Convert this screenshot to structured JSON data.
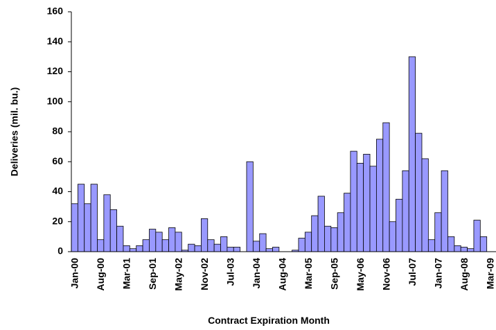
{
  "chart_data": {
    "type": "bar",
    "x_label": "Contract Expiration Month",
    "y_label": "Deliveries (mil. bu.)",
    "categories": [
      "Jan-00",
      null,
      null,
      null,
      "Aug-00",
      null,
      null,
      null,
      "Mar-01",
      null,
      null,
      null,
      "Sep-01",
      null,
      null,
      null,
      "May-02",
      null,
      null,
      null,
      "Nov-02",
      null,
      null,
      null,
      "Jul-03",
      null,
      null,
      null,
      "Jan-04",
      null,
      null,
      null,
      "Aug-04",
      null,
      null,
      null,
      "Mar-05",
      null,
      null,
      null,
      "Sep-05",
      null,
      null,
      null,
      "May-06",
      null,
      null,
      null,
      "Nov-06",
      null,
      null,
      null,
      "Jul-07",
      null,
      null,
      null,
      "Jan-07",
      null,
      null,
      null,
      "Aug-08",
      null,
      null,
      null,
      "Mar-09"
    ],
    "values": [
      32,
      45,
      32,
      45,
      8,
      38,
      28,
      17,
      4,
      2,
      4,
      8,
      15,
      13,
      8,
      16,
      13,
      1,
      5,
      4,
      22,
      8,
      5,
      10,
      3,
      3,
      0,
      60,
      7,
      12,
      2,
      3,
      0,
      0,
      1,
      9,
      13,
      24,
      37,
      17,
      16,
      26,
      39,
      67,
      59,
      65,
      57,
      75,
      86,
      20,
      35,
      54,
      130,
      79,
      62,
      8,
      26,
      54,
      10,
      4,
      3,
      2,
      21,
      10,
      null
    ],
    "color": "#9999ff",
    "ylim": [
      0,
      160
    ],
    "yticks": [
      0,
      20,
      40,
      60,
      80,
      100,
      120,
      140,
      160
    ],
    "grid": false
  }
}
